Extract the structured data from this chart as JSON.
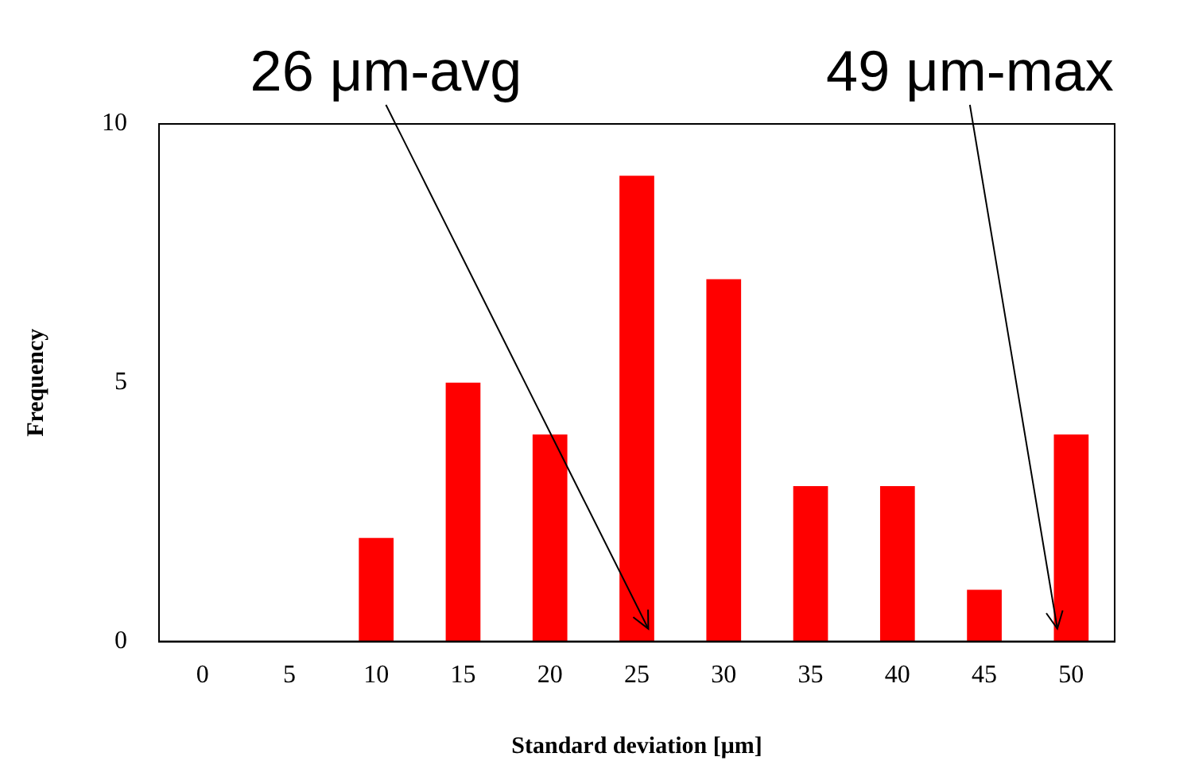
{
  "chart_data": {
    "type": "bar",
    "xlabel": "Standard deviation [μm]",
    "ylabel": "Frequency",
    "categories": [
      "0",
      "5",
      "10",
      "15",
      "20",
      "25",
      "30",
      "35",
      "40",
      "45",
      "50"
    ],
    "values": [
      0,
      0,
      2,
      5,
      4,
      9,
      7,
      3,
      3,
      1,
      4
    ],
    "color": "#ff0000",
    "ylim": [
      0,
      10
    ],
    "yticks": [
      0,
      5,
      10
    ],
    "grid": false,
    "legend": false,
    "annotations": [
      "26 μm-avg",
      "49 μm-max"
    ]
  }
}
